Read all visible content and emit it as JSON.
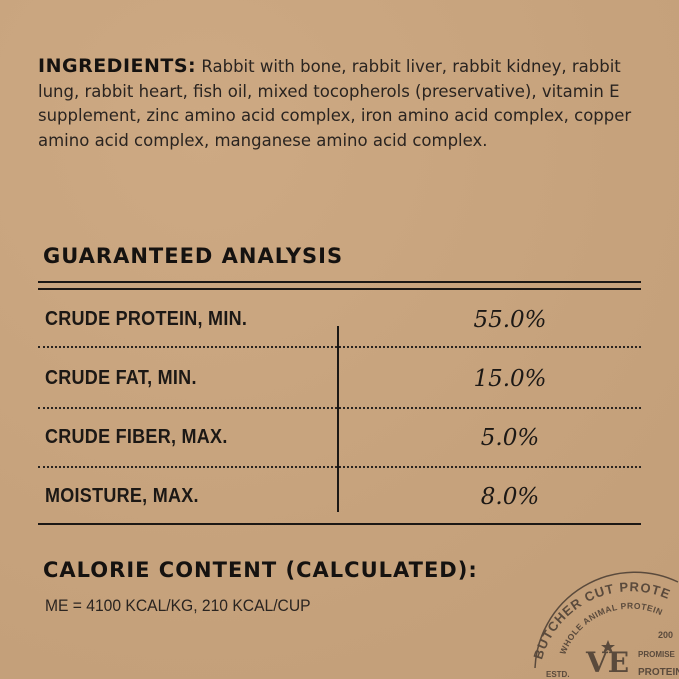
{
  "ingredients": {
    "label": "INGREDIENTS:",
    "text": "Rabbit with bone, rabbit liver, rabbit kidney, rabbit lung, rabbit heart, fish oil, mixed tocopherols (preservative), vitamin E supplement, zinc amino acid complex, iron amino acid complex, copper amino acid complex, manganese amino acid complex."
  },
  "analysis": {
    "title": "GUARANTEED ANALYSIS",
    "rows": [
      {
        "label": "CRUDE PROTEIN, MIN.",
        "value": "55.0%"
      },
      {
        "label": "CRUDE FAT, MIN.",
        "value": "15.0%"
      },
      {
        "label": "CRUDE FIBER, MAX.",
        "value": "5.0%"
      },
      {
        "label": "MOISTURE, MAX.",
        "value": "8.0%"
      }
    ]
  },
  "calorie": {
    "title": "CALORIE CONTENT (CALCULATED):",
    "text": "ME = 4100 KCAL/KG, 210 KCAL/CUP"
  },
  "stamp": {
    "outer": "BUTCHER CUT PROTEIN",
    "inner": "WHOLE ANIMAL PROTEIN",
    "monogram": "VE",
    "estd": "ESTD.",
    "year": "200",
    "promise": "PROMISE",
    "protein": "PROTEIN"
  },
  "colors": {
    "background": "#c8a47f",
    "ink": "#1c1815",
    "stamp": "#5a4a3c"
  }
}
